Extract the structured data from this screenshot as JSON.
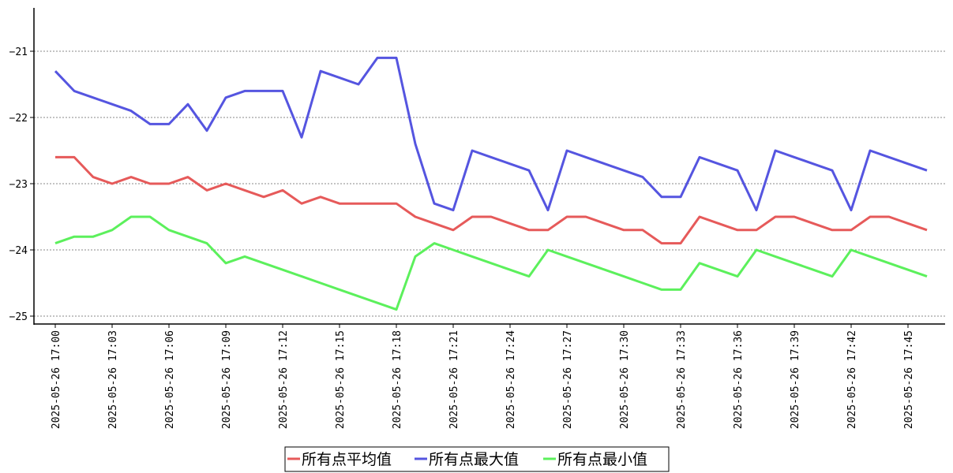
{
  "chart_data": {
    "type": "line",
    "title": "",
    "xlabel": "",
    "ylabel": "",
    "ylim": [
      -25.1,
      -20.35
    ],
    "yticks": [
      -21,
      -22,
      -23,
      -24,
      -25
    ],
    "ytick_labels": [
      "−21",
      "−22",
      "−23",
      "−24",
      "−25"
    ],
    "grid": "horizontal dotted",
    "legend_position": "bottom-center",
    "x": [
      "2025-05-26 17:00",
      "2025-05-26 17:01",
      "2025-05-26 17:02",
      "2025-05-26 17:03",
      "2025-05-26 17:04",
      "2025-05-26 17:05",
      "2025-05-26 17:06",
      "2025-05-26 17:07",
      "2025-05-26 17:08",
      "2025-05-26 17:09",
      "2025-05-26 17:10",
      "2025-05-26 17:11",
      "2025-05-26 17:12",
      "2025-05-26 17:13",
      "2025-05-26 17:14",
      "2025-05-26 17:15",
      "2025-05-26 17:16",
      "2025-05-26 17:17",
      "2025-05-26 17:18",
      "2025-05-26 17:19",
      "2025-05-26 17:20",
      "2025-05-26 17:21",
      "2025-05-26 17:22",
      "2025-05-26 17:23",
      "2025-05-26 17:24",
      "2025-05-26 17:25",
      "2025-05-26 17:26",
      "2025-05-26 17:27",
      "2025-05-26 17:28",
      "2025-05-26 17:29",
      "2025-05-26 17:30",
      "2025-05-26 17:31",
      "2025-05-26 17:32",
      "2025-05-26 17:33",
      "2025-05-26 17:34",
      "2025-05-26 17:35",
      "2025-05-26 17:36",
      "2025-05-26 17:37",
      "2025-05-26 17:38",
      "2025-05-26 17:39",
      "2025-05-26 17:40",
      "2025-05-26 17:41",
      "2025-05-26 17:42",
      "2025-05-26 17:43",
      "2025-05-26 17:44",
      "2025-05-26 17:45",
      "2025-05-26 17:46"
    ],
    "xtick_labels": [
      "2025-05-26 17:00",
      "2025-05-26 17:03",
      "2025-05-26 17:06",
      "2025-05-26 17:09",
      "2025-05-26 17:12",
      "2025-05-26 17:15",
      "2025-05-26 17:18",
      "2025-05-26 17:21",
      "2025-05-26 17:24",
      "2025-05-26 17:27",
      "2025-05-26 17:30",
      "2025-05-26 17:33",
      "2025-05-26 17:36",
      "2025-05-26 17:39",
      "2025-05-26 17:42",
      "2025-05-26 17:45"
    ],
    "series": [
      {
        "name": "所有点平均值",
        "color": "#e65a5a",
        "values": [
          -22.6,
          -22.6,
          -22.9,
          -23.0,
          -22.9,
          -23.0,
          -23.0,
          -22.9,
          -23.1,
          -23.0,
          -23.1,
          -23.2,
          -23.1,
          -23.3,
          -23.2,
          -23.3,
          -23.3,
          -23.3,
          -23.3,
          -23.5,
          -23.6,
          -23.7,
          -23.5,
          -23.5,
          -23.6,
          -23.7,
          -23.7,
          -23.5,
          -23.5,
          -23.6,
          -23.7,
          -23.7,
          -23.9,
          -23.9,
          -23.5,
          -23.6,
          -23.7,
          -23.7,
          -23.5,
          -23.5,
          -23.6,
          -23.7,
          -23.7,
          -23.5,
          -23.5,
          -23.6,
          -23.7
        ]
      },
      {
        "name": "所有点最大值",
        "color": "#5555e0",
        "values": [
          -21.3,
          -21.6,
          -21.7,
          -21.8,
          -21.9,
          -22.1,
          -22.1,
          -21.8,
          -22.2,
          -21.7,
          -21.6,
          -21.6,
          -21.6,
          -22.3,
          -21.3,
          -21.4,
          -21.5,
          -21.1,
          -21.1,
          -22.4,
          -23.3,
          -23.4,
          -22.5,
          -22.6,
          -22.7,
          -22.8,
          -23.4,
          -22.5,
          -22.6,
          -22.7,
          -22.8,
          -22.9,
          -23.2,
          -23.2,
          -22.6,
          -22.7,
          -22.8,
          -23.4,
          -22.5,
          -22.6,
          -22.7,
          -22.8,
          -23.4,
          -22.5,
          -22.6,
          -22.7,
          -22.8
        ]
      },
      {
        "name": "所有点最小值",
        "color": "#5cf05c",
        "values": [
          -23.9,
          -23.8,
          -23.8,
          -23.7,
          -23.5,
          -23.5,
          -23.7,
          -23.8,
          -23.9,
          -24.2,
          -24.1,
          -24.2,
          -24.3,
          -24.4,
          -24.5,
          -24.6,
          -24.7,
          -24.8,
          -24.9,
          -24.1,
          -23.9,
          -24.0,
          -24.1,
          -24.2,
          -24.3,
          -24.4,
          -24.0,
          -24.1,
          -24.2,
          -24.3,
          -24.4,
          -24.5,
          -24.6,
          -24.6,
          -24.2,
          -24.3,
          -24.4,
          -24.0,
          -24.1,
          -24.2,
          -24.3,
          -24.4,
          -24.0,
          -24.1,
          -24.2,
          -24.3,
          -24.4
        ]
      }
    ]
  }
}
